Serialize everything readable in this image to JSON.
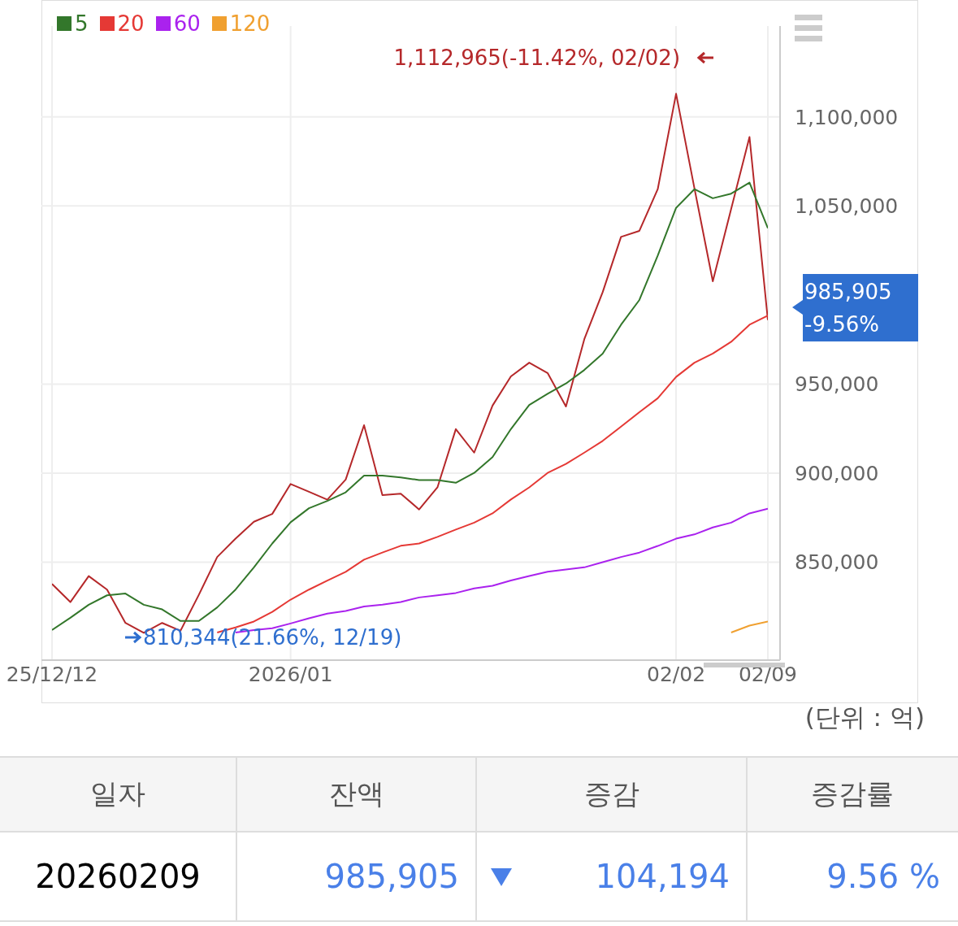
{
  "chart_data": {
    "type": "line",
    "categories": [
      "25/12/12",
      null,
      null,
      null,
      null,
      null,
      null,
      null,
      null,
      null,
      null,
      null,
      null,
      "2026/01",
      null,
      null,
      null,
      null,
      null,
      null,
      null,
      null,
      null,
      null,
      null,
      null,
      null,
      null,
      null,
      null,
      null,
      null,
      null,
      null,
      "02/02",
      null,
      null,
      null,
      null,
      "02/09"
    ],
    "series": [
      {
        "color": "#b5282a",
        "values": [
          837800,
          827600,
          842200,
          834600,
          815900,
          810344,
          815900,
          811500,
          831700,
          852900,
          863200,
          872700,
          877100,
          893900,
          889500,
          885100,
          896400,
          926900,
          887600,
          888500,
          879600,
          892000,
          924700,
          911500,
          937900,
          954300,
          962000,
          956200,
          937400,
          975200,
          1001600,
          1032600,
          1036000,
          1059400,
          1112965,
          1059900,
          1007700,
          1048300,
          1088700,
          985905
        ]
      },
      {
        "name": "5",
        "color": "#33772b",
        "values": [
          811900,
          818800,
          826100,
          831400,
          832400,
          826100,
          823500,
          817000,
          817000,
          824600,
          834600,
          847100,
          860500,
          872400,
          880300,
          884400,
          889200,
          898600,
          898600,
          897600,
          896100,
          896100,
          894600,
          900100,
          909000,
          924700,
          938300,
          944500,
          950300,
          957900,
          967100,
          983300,
          997200,
          1022100,
          1048900,
          1059400,
          1054300,
          1056900,
          1063100,
          1037500
        ]
      },
      {
        "name": "20",
        "color": "#e53935",
        "values": [
          null,
          null,
          null,
          null,
          null,
          null,
          null,
          null,
          null,
          810500,
          813400,
          816700,
          822100,
          829000,
          834600,
          839700,
          844600,
          851400,
          855400,
          859200,
          860500,
          864200,
          868300,
          872200,
          877400,
          885200,
          892000,
          900100,
          905200,
          911500,
          918100,
          926100,
          934200,
          942000,
          954000,
          962000,
          967100,
          973700,
          983300,
          988400
        ]
      },
      {
        "name": "60",
        "color": "#aa22ee",
        "values": [
          null,
          null,
          null,
          null,
          null,
          null,
          null,
          null,
          null,
          null,
          810500,
          811900,
          812900,
          815600,
          818500,
          821100,
          822600,
          825100,
          826100,
          827600,
          830200,
          831400,
          832700,
          835300,
          836800,
          839700,
          842200,
          844600,
          845900,
          847100,
          850000,
          852900,
          855400,
          859100,
          863200,
          865600,
          869500,
          872200,
          877400,
          880000
        ]
      },
      {
        "name": "120",
        "color": "#f0a030",
        "values": [
          null,
          null,
          null,
          null,
          null,
          null,
          null,
          null,
          null,
          null,
          null,
          null,
          null,
          null,
          null,
          null,
          null,
          null,
          null,
          null,
          null,
          null,
          null,
          null,
          null,
          null,
          null,
          null,
          null,
          null,
          null,
          null,
          null,
          null,
          null,
          null,
          null,
          810500,
          814400,
          816700
        ]
      }
    ],
    "ylim": [
      795000,
      1151000
    ],
    "yticks": [
      {
        "value": 850000,
        "label": "850,000"
      },
      {
        "value": 900000,
        "label": "900,000"
      },
      {
        "value": 950000,
        "label": "950,000"
      },
      {
        "value": 1050000,
        "label": "1,050,000"
      },
      {
        "value": 1100000,
        "label": "1,100,000"
      }
    ],
    "grid": true,
    "legend": "top left",
    "annotations": [
      {
        "text": "1,112,965(-11.42%, 02/02)",
        "x": "02/02",
        "y": 1112965
      },
      {
        "text": "810,344(21.66%, 12/19)",
        "y": 810344
      },
      {
        "text": "985,905\n-9.56%",
        "x": "02/09",
        "y": 985905
      },
      "(단위 : 억)",
      "일자",
      "잔액",
      "증감",
      "증감률",
      "20260209",
      "985,905",
      "104,194",
      "9.56 %"
    ]
  }
}
